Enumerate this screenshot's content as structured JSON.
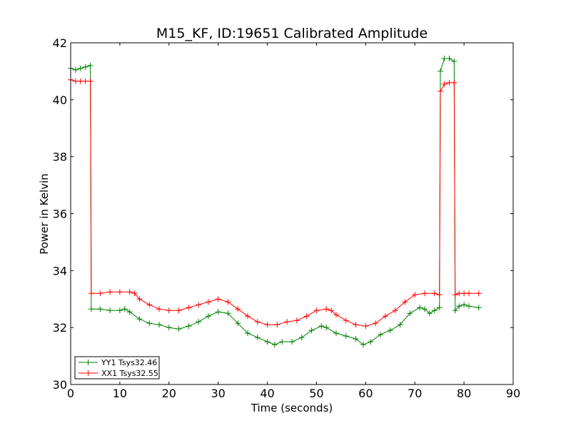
{
  "chart_data": {
    "type": "line",
    "title": "M15_KF, ID:19651 Calibrated Amplitude",
    "xlabel": "Time (seconds)",
    "ylabel": "Power in Kelvin",
    "xlim": [
      0,
      90
    ],
    "ylim": [
      30,
      42
    ],
    "xticks": [
      0,
      10,
      20,
      30,
      40,
      50,
      60,
      70,
      80,
      90
    ],
    "yticks": [
      30,
      32,
      34,
      36,
      38,
      40,
      42
    ],
    "grid": false,
    "legend_position": "lower-left",
    "marker": "+",
    "series": [
      {
        "name": "YY1 Tsys32.46",
        "color": "#008000",
        "points": [
          [
            0,
            41.1
          ],
          [
            1,
            41.05
          ],
          [
            2,
            41.1
          ],
          [
            3,
            41.15
          ],
          [
            4,
            41.2
          ],
          [
            4.2,
            32.65
          ],
          [
            6,
            32.65
          ],
          [
            8,
            32.6
          ],
          [
            10,
            32.6
          ],
          [
            11,
            32.65
          ],
          [
            12,
            32.55
          ],
          [
            14,
            32.3
          ],
          [
            16,
            32.15
          ],
          [
            18,
            32.1
          ],
          [
            20,
            32.0
          ],
          [
            22,
            31.95
          ],
          [
            24,
            32.05
          ],
          [
            26,
            32.2
          ],
          [
            28,
            32.4
          ],
          [
            30,
            32.55
          ],
          [
            32,
            32.5
          ],
          [
            34,
            32.15
          ],
          [
            36,
            31.8
          ],
          [
            38,
            31.65
          ],
          [
            40,
            31.5
          ],
          [
            41.5,
            31.4
          ],
          [
            43,
            31.5
          ],
          [
            45,
            31.5
          ],
          [
            47,
            31.65
          ],
          [
            49,
            31.9
          ],
          [
            51,
            32.05
          ],
          [
            52,
            32.0
          ],
          [
            54,
            31.8
          ],
          [
            56,
            31.7
          ],
          [
            58,
            31.6
          ],
          [
            59.5,
            31.4
          ],
          [
            61,
            31.5
          ],
          [
            63,
            31.75
          ],
          [
            65,
            31.9
          ],
          [
            67,
            32.1
          ],
          [
            69,
            32.5
          ],
          [
            71,
            32.7
          ],
          [
            72,
            32.65
          ],
          [
            73,
            32.5
          ],
          [
            74,
            32.6
          ],
          [
            75,
            32.7
          ],
          [
            75.2,
            41.0
          ],
          [
            76,
            41.45
          ],
          [
            77,
            41.45
          ],
          [
            78,
            41.35
          ],
          [
            78.2,
            32.6
          ],
          [
            79,
            32.75
          ],
          [
            80,
            32.8
          ],
          [
            81,
            32.75
          ],
          [
            83,
            32.7
          ]
        ]
      },
      {
        "name": "XX1 Tsys32.55",
        "color": "#ff0000",
        "points": [
          [
            0,
            40.7
          ],
          [
            1,
            40.65
          ],
          [
            2,
            40.65
          ],
          [
            3,
            40.65
          ],
          [
            4,
            40.65
          ],
          [
            4.2,
            33.2
          ],
          [
            6,
            33.2
          ],
          [
            8,
            33.25
          ],
          [
            10,
            33.25
          ],
          [
            12,
            33.25
          ],
          [
            13,
            33.2
          ],
          [
            14,
            33.0
          ],
          [
            16,
            32.8
          ],
          [
            18,
            32.65
          ],
          [
            20,
            32.6
          ],
          [
            22,
            32.6
          ],
          [
            24,
            32.7
          ],
          [
            26,
            32.8
          ],
          [
            28,
            32.9
          ],
          [
            30,
            33.0
          ],
          [
            32,
            32.9
          ],
          [
            34,
            32.65
          ],
          [
            36,
            32.4
          ],
          [
            38,
            32.2
          ],
          [
            40,
            32.1
          ],
          [
            42,
            32.1
          ],
          [
            44,
            32.2
          ],
          [
            46,
            32.25
          ],
          [
            48,
            32.4
          ],
          [
            50,
            32.6
          ],
          [
            52,
            32.65
          ],
          [
            53,
            32.6
          ],
          [
            54,
            32.45
          ],
          [
            56,
            32.25
          ],
          [
            58,
            32.1
          ],
          [
            60,
            32.05
          ],
          [
            62,
            32.15
          ],
          [
            64,
            32.4
          ],
          [
            66,
            32.6
          ],
          [
            68,
            32.9
          ],
          [
            70,
            33.15
          ],
          [
            72,
            33.2
          ],
          [
            74,
            33.2
          ],
          [
            75,
            33.15
          ],
          [
            75.2,
            40.3
          ],
          [
            76,
            40.55
          ],
          [
            77,
            40.6
          ],
          [
            78,
            40.6
          ],
          [
            78.2,
            33.15
          ],
          [
            79,
            33.2
          ],
          [
            80,
            33.2
          ],
          [
            81,
            33.2
          ],
          [
            83,
            33.2
          ]
        ]
      }
    ]
  }
}
